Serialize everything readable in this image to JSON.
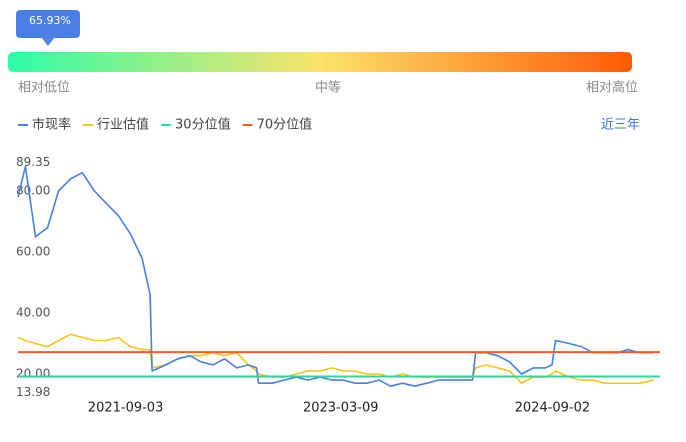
{
  "chart_data": {
    "type": "line",
    "tooltip": "65.93%",
    "scale_labels": [
      "相对低位",
      "中等",
      "相对高位"
    ],
    "range_selector": "近三年",
    "x": [
      "2020-12-01",
      "2020-12-20",
      "2021-01-15",
      "2021-02-15",
      "2021-03-15",
      "2021-04-15",
      "2021-05-15",
      "2021-06-15",
      "2021-07-15",
      "2021-08-15",
      "2021-09-15",
      "2021-10-15",
      "2021-11-05",
      "2021-11-10",
      "2021-12-15",
      "2022-01-15",
      "2022-02-15",
      "2022-03-15",
      "2022-04-15",
      "2022-05-15",
      "2022-06-15",
      "2022-07-15",
      "2022-08-05",
      "2022-08-10",
      "2022-09-15",
      "2022-10-15",
      "2022-11-15",
      "2022-12-15",
      "2023-01-15",
      "2023-02-15",
      "2023-03-15",
      "2023-04-15",
      "2023-05-15",
      "2023-06-15",
      "2023-07-15",
      "2023-08-15",
      "2023-09-15",
      "2023-10-15",
      "2023-11-15",
      "2023-12-15",
      "2024-01-15",
      "2024-02-10",
      "2024-02-18",
      "2024-03-15",
      "2024-04-15",
      "2024-05-15",
      "2024-06-15",
      "2024-07-15",
      "2024-08-15",
      "2024-09-01",
      "2024-09-10",
      "2024-10-15",
      "2024-11-15",
      "2024-12-15",
      "2025-01-15",
      "2025-02-15",
      "2025-03-15",
      "2025-04-15",
      "2025-05-20"
    ],
    "series": [
      {
        "name": "市现率",
        "color": "#4a7fe6",
        "values": [
          78,
          88,
          65,
          68,
          80,
          84,
          86,
          80,
          76,
          72,
          66,
          58,
          46,
          21,
          23,
          25,
          26,
          24,
          23,
          25,
          22,
          23,
          22,
          17,
          17,
          18,
          19,
          18,
          19,
          18,
          18,
          17,
          17,
          18,
          16,
          17,
          16,
          17,
          18,
          18,
          18,
          18,
          27,
          27,
          26,
          24,
          20,
          22,
          22,
          23,
          31,
          30,
          29,
          27,
          27,
          27,
          28,
          27,
          27
        ]
      },
      {
        "name": "行业估值",
        "color": "#f5c518",
        "values": [
          32,
          31,
          30,
          29,
          31,
          33,
          32,
          31,
          31,
          32,
          29,
          28,
          28,
          22,
          23,
          25,
          26,
          26,
          27,
          26,
          27,
          23,
          21,
          20,
          19,
          19,
          20,
          21,
          21,
          22,
          21,
          21,
          20,
          20,
          19,
          20,
          19,
          19,
          19,
          19,
          19,
          19,
          22,
          23,
          22,
          21,
          17,
          19,
          19,
          20,
          21,
          19,
          18,
          18,
          17,
          17,
          17,
          17,
          18
        ]
      }
    ],
    "reference_lines": [
      {
        "name": "30分位值",
        "color": "#2ed69e",
        "value": 19.2
      },
      {
        "name": "70分位值",
        "color": "#ff5a1f",
        "value": 27.2
      }
    ],
    "xlim": [
      "2020-12-01",
      "2025-06-05"
    ],
    "xticks": [
      "2021-09-03",
      "2023-03-09",
      "2024-09-02"
    ],
    "ylim": [
      13.98,
      89.35
    ],
    "yticks": [
      89.35,
      {
        "value": 80,
        "label": "80.00"
      },
      {
        "value": 60,
        "label": "60.00"
      },
      {
        "value": 40,
        "label": "40.00"
      },
      {
        "value": 20,
        "label": "20.00"
      },
      13.98
    ]
  }
}
